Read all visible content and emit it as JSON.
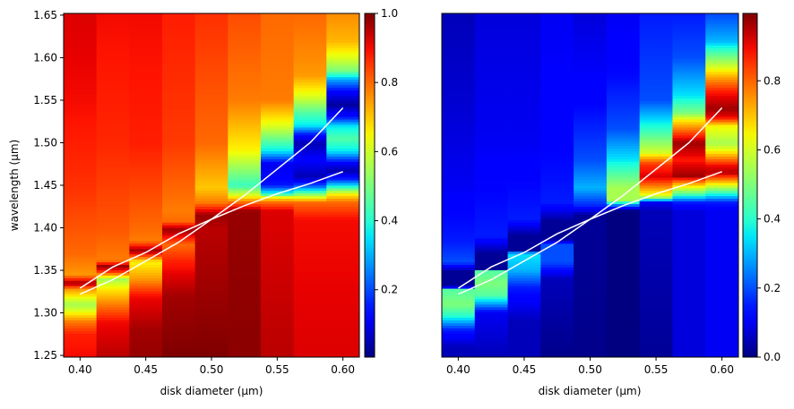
{
  "chart_data": [
    {
      "type": "heatmap",
      "xlabel": "disk diameter (μm)",
      "ylabel": "wavelength (μm)",
      "colormap": "jet",
      "xlim": [
        0.3875,
        0.6125
      ],
      "ylim": [
        1.248,
        1.652
      ],
      "xticks": [
        "0.40",
        "0.45",
        "0.50",
        "0.55",
        "0.60"
      ],
      "yticks": [
        "1.25",
        "1.30",
        "1.35",
        "1.40",
        "1.45",
        "1.50",
        "1.55",
        "1.60",
        "1.65"
      ],
      "colorbar": {
        "clim": [
          0.005,
          1.0
        ],
        "ticks": [
          "0.2",
          "0.4",
          "0.6",
          "0.8",
          "1.0"
        ]
      },
      "columns": [
        {
          "x": 0.4,
          "profile": [
            [
              1.25,
              0.9
            ],
            [
              1.275,
              0.88
            ],
            [
              1.29,
              0.78
            ],
            [
              1.3,
              0.65
            ],
            [
              1.31,
              0.55
            ],
            [
              1.328,
              0.75
            ],
            [
              1.335,
              0.98
            ],
            [
              1.345,
              0.75
            ],
            [
              1.37,
              0.8
            ],
            [
              1.45,
              0.86
            ],
            [
              1.55,
              0.9
            ],
            [
              1.65,
              0.92
            ]
          ]
        },
        {
          "x": 0.425,
          "profile": [
            [
              1.25,
              0.95
            ],
            [
              1.29,
              0.9
            ],
            [
              1.31,
              0.78
            ],
            [
              1.33,
              0.65
            ],
            [
              1.34,
              0.55
            ],
            [
              1.348,
              0.85
            ],
            [
              1.355,
              0.98
            ],
            [
              1.362,
              0.78
            ],
            [
              1.4,
              0.82
            ],
            [
              1.5,
              0.87
            ],
            [
              1.65,
              0.9
            ]
          ]
        },
        {
          "x": 0.45,
          "profile": [
            [
              1.25,
              0.98
            ],
            [
              1.28,
              0.97
            ],
            [
              1.32,
              0.9
            ],
            [
              1.34,
              0.75
            ],
            [
              1.36,
              0.65
            ],
            [
              1.373,
              0.98
            ],
            [
              1.385,
              0.78
            ],
            [
              1.4,
              0.8
            ],
            [
              1.5,
              0.88
            ],
            [
              1.65,
              0.9
            ]
          ]
        },
        {
          "x": 0.475,
          "profile": [
            [
              1.25,
              1.0
            ],
            [
              1.32,
              0.97
            ],
            [
              1.36,
              0.88
            ],
            [
              1.38,
              0.8
            ],
            [
              1.398,
              0.98
            ],
            [
              1.408,
              0.8
            ],
            [
              1.42,
              0.78
            ],
            [
              1.5,
              0.85
            ],
            [
              1.65,
              0.88
            ]
          ]
        },
        {
          "x": 0.5,
          "profile": [
            [
              1.25,
              1.0
            ],
            [
              1.4,
              0.95
            ],
            [
              1.415,
              0.98
            ],
            [
              1.43,
              0.78
            ],
            [
              1.447,
              0.7
            ],
            [
              1.5,
              0.8
            ],
            [
              1.65,
              0.86
            ]
          ]
        },
        {
          "x": 0.525,
          "profile": [
            [
              1.25,
              0.99
            ],
            [
              1.42,
              0.98
            ],
            [
              1.43,
              0.8
            ],
            [
              1.437,
              0.65
            ],
            [
              1.45,
              0.42
            ],
            [
              1.49,
              0.65
            ],
            [
              1.55,
              0.78
            ],
            [
              1.65,
              0.83
            ]
          ]
        },
        {
          "x": 0.55,
          "profile": [
            [
              1.25,
              0.95
            ],
            [
              1.42,
              0.92
            ],
            [
              1.43,
              0.8
            ],
            [
              1.436,
              0.65
            ],
            [
              1.44,
              0.4
            ],
            [
              1.45,
              0.15
            ],
            [
              1.46,
              0.12
            ],
            [
              1.475,
              0.1
            ],
            [
              1.49,
              0.35
            ],
            [
              1.52,
              0.62
            ],
            [
              1.55,
              0.78
            ],
            [
              1.65,
              0.8
            ]
          ]
        },
        {
          "x": 0.575,
          "profile": [
            [
              1.25,
              0.92
            ],
            [
              1.41,
              0.9
            ],
            [
              1.43,
              0.8
            ],
            [
              1.437,
              0.6
            ],
            [
              1.443,
              0.4
            ],
            [
              1.45,
              0.2
            ],
            [
              1.46,
              0.05
            ],
            [
              1.48,
              0.12
            ],
            [
              1.5,
              0.05
            ],
            [
              1.51,
              0.15
            ],
            [
              1.52,
              0.35
            ],
            [
              1.535,
              0.45
            ],
            [
              1.555,
              0.62
            ],
            [
              1.58,
              0.75
            ],
            [
              1.65,
              0.8
            ]
          ]
        },
        {
          "x": 0.6,
          "profile": [
            [
              1.25,
              0.92
            ],
            [
              1.41,
              0.9
            ],
            [
              1.43,
              0.8
            ],
            [
              1.44,
              0.65
            ],
            [
              1.445,
              0.5
            ],
            [
              1.45,
              0.35
            ],
            [
              1.458,
              0.15
            ],
            [
              1.467,
              0.05
            ],
            [
              1.475,
              0.1
            ],
            [
              1.49,
              0.35
            ],
            [
              1.505,
              0.45
            ],
            [
              1.52,
              0.35
            ],
            [
              1.53,
              0.15
            ],
            [
              1.545,
              0.03
            ],
            [
              1.56,
              0.12
            ],
            [
              1.575,
              0.3
            ],
            [
              1.585,
              0.5
            ],
            [
              1.6,
              0.62
            ],
            [
              1.62,
              0.72
            ],
            [
              1.65,
              0.76
            ]
          ]
        }
      ],
      "lines": [
        {
          "color": "#ffffff",
          "x": [
            0.4,
            0.425,
            0.45,
            0.475,
            0.5,
            0.525,
            0.55,
            0.575,
            0.6
          ],
          "y": [
            1.322,
            1.339,
            1.361,
            1.383,
            1.41,
            1.438,
            1.469,
            1.5,
            1.541
          ]
        },
        {
          "color": "#ffffff",
          "x": [
            0.4,
            0.425,
            0.45,
            0.475,
            0.5,
            0.525,
            0.55,
            0.575,
            0.6
          ],
          "y": [
            1.329,
            1.354,
            1.371,
            1.393,
            1.41,
            1.426,
            1.44,
            1.452,
            1.466
          ]
        }
      ]
    },
    {
      "type": "heatmap",
      "xlabel": "disk diameter (μm)",
      "colormap": "jet",
      "xlim": [
        0.3875,
        0.6125
      ],
      "ylim": [
        1.248,
        1.652
      ],
      "xticks": [
        "0.40",
        "0.45",
        "0.50",
        "0.55",
        "0.60"
      ],
      "colorbar": {
        "clim": [
          0.0,
          0.995
        ],
        "ticks": [
          "0.0",
          "0.2",
          "0.4",
          "0.6",
          "0.8"
        ]
      },
      "columns": [
        {
          "x": 0.4,
          "profile": [
            [
              1.25,
              0.05
            ],
            [
              1.26,
              0.05
            ],
            [
              1.28,
              0.15
            ],
            [
              1.297,
              0.4
            ],
            [
              1.31,
              0.5
            ],
            [
              1.328,
              0.45
            ],
            [
              1.331,
              0.02
            ],
            [
              1.349,
              0.02
            ],
            [
              1.36,
              0.2
            ],
            [
              1.384,
              0.15
            ],
            [
              1.45,
              0.1
            ],
            [
              1.55,
              0.07
            ],
            [
              1.65,
              0.05
            ]
          ]
        },
        {
          "x": 0.425,
          "profile": [
            [
              1.25,
              0.05
            ],
            [
              1.3,
              0.1
            ],
            [
              1.321,
              0.45
            ],
            [
              1.335,
              0.5
            ],
            [
              1.349,
              0.45
            ],
            [
              1.352,
              0.02
            ],
            [
              1.37,
              0.02
            ],
            [
              1.39,
              0.15
            ],
            [
              1.5,
              0.1
            ],
            [
              1.65,
              0.08
            ]
          ]
        },
        {
          "x": 0.45,
          "profile": [
            [
              1.25,
              0.05
            ],
            [
              1.29,
              0.05
            ],
            [
              1.33,
              0.15
            ],
            [
              1.35,
              0.3
            ],
            [
              1.37,
              0.35
            ],
            [
              1.373,
              0.02
            ],
            [
              1.391,
              0.02
            ],
            [
              1.41,
              0.15
            ],
            [
              1.5,
              0.1
            ],
            [
              1.65,
              0.08
            ]
          ]
        },
        {
          "x": 0.475,
          "profile": [
            [
              1.25,
              0.01
            ],
            [
              1.34,
              0.05
            ],
            [
              1.36,
              0.2
            ],
            [
              1.38,
              0.2
            ],
            [
              1.387,
              0.02
            ],
            [
              1.408,
              0.02
            ],
            [
              1.43,
              0.15
            ],
            [
              1.5,
              0.12
            ],
            [
              1.65,
              0.1
            ]
          ]
        },
        {
          "x": 0.5,
          "profile": [
            [
              1.25,
              0.01
            ],
            [
              1.4,
              0.02
            ],
            [
              1.415,
              0.02
            ],
            [
              1.425,
              0.15
            ],
            [
              1.447,
              0.3
            ],
            [
              1.48,
              0.2
            ],
            [
              1.55,
              0.12
            ],
            [
              1.65,
              0.08
            ]
          ]
        },
        {
          "x": 0.525,
          "profile": [
            [
              1.25,
              0.0
            ],
            [
              1.42,
              0.0
            ],
            [
              1.425,
              0.15
            ],
            [
              1.433,
              0.55
            ],
            [
              1.447,
              0.55
            ],
            [
              1.48,
              0.35
            ],
            [
              1.517,
              0.2
            ],
            [
              1.58,
              0.13
            ],
            [
              1.65,
              0.1
            ]
          ]
        },
        {
          "x": 0.55,
          "profile": [
            [
              1.25,
              0.02
            ],
            [
              1.42,
              0.05
            ],
            [
              1.43,
              0.1
            ],
            [
              1.437,
              0.6
            ],
            [
              1.444,
              0.7
            ],
            [
              1.46,
              0.92
            ],
            [
              1.475,
              0.85
            ],
            [
              1.489,
              0.6
            ],
            [
              1.517,
              0.4
            ],
            [
              1.55,
              0.2
            ],
            [
              1.65,
              0.15
            ]
          ]
        },
        {
          "x": 0.575,
          "profile": [
            [
              1.25,
              0.08
            ],
            [
              1.42,
              0.08
            ],
            [
              1.43,
              0.15
            ],
            [
              1.44,
              0.45
            ],
            [
              1.453,
              0.75
            ],
            [
              1.461,
              0.97
            ],
            [
              1.48,
              0.88
            ],
            [
              1.5,
              0.97
            ],
            [
              1.51,
              0.85
            ],
            [
              1.527,
              0.65
            ],
            [
              1.535,
              0.5
            ],
            [
              1.555,
              0.35
            ],
            [
              1.6,
              0.2
            ],
            [
              1.65,
              0.15
            ]
          ]
        },
        {
          "x": 0.6,
          "profile": [
            [
              1.25,
              0.1
            ],
            [
              1.42,
              0.1
            ],
            [
              1.43,
              0.15
            ],
            [
              1.445,
              0.5
            ],
            [
              1.456,
              0.75
            ],
            [
              1.465,
              0.95
            ],
            [
              1.473,
              0.9
            ],
            [
              1.49,
              0.65
            ],
            [
              1.5,
              0.55
            ],
            [
              1.52,
              0.65
            ],
            [
              1.53,
              0.9
            ],
            [
              1.54,
              0.97
            ],
            [
              1.56,
              0.88
            ],
            [
              1.575,
              0.75
            ],
            [
              1.6,
              0.5
            ],
            [
              1.62,
              0.3
            ],
            [
              1.65,
              0.2
            ]
          ]
        }
      ],
      "lines": [
        {
          "color": "#ffffff",
          "x": [
            0.4,
            0.425,
            0.45,
            0.475,
            0.5,
            0.525,
            0.55,
            0.575,
            0.6
          ],
          "y": [
            1.322,
            1.339,
            1.361,
            1.383,
            1.41,
            1.438,
            1.469,
            1.5,
            1.541
          ]
        },
        {
          "color": "#ffffff",
          "x": [
            0.4,
            0.425,
            0.45,
            0.475,
            0.5,
            0.525,
            0.55,
            0.575,
            0.6
          ],
          "y": [
            1.329,
            1.354,
            1.371,
            1.393,
            1.41,
            1.426,
            1.44,
            1.452,
            1.466
          ]
        }
      ]
    }
  ]
}
